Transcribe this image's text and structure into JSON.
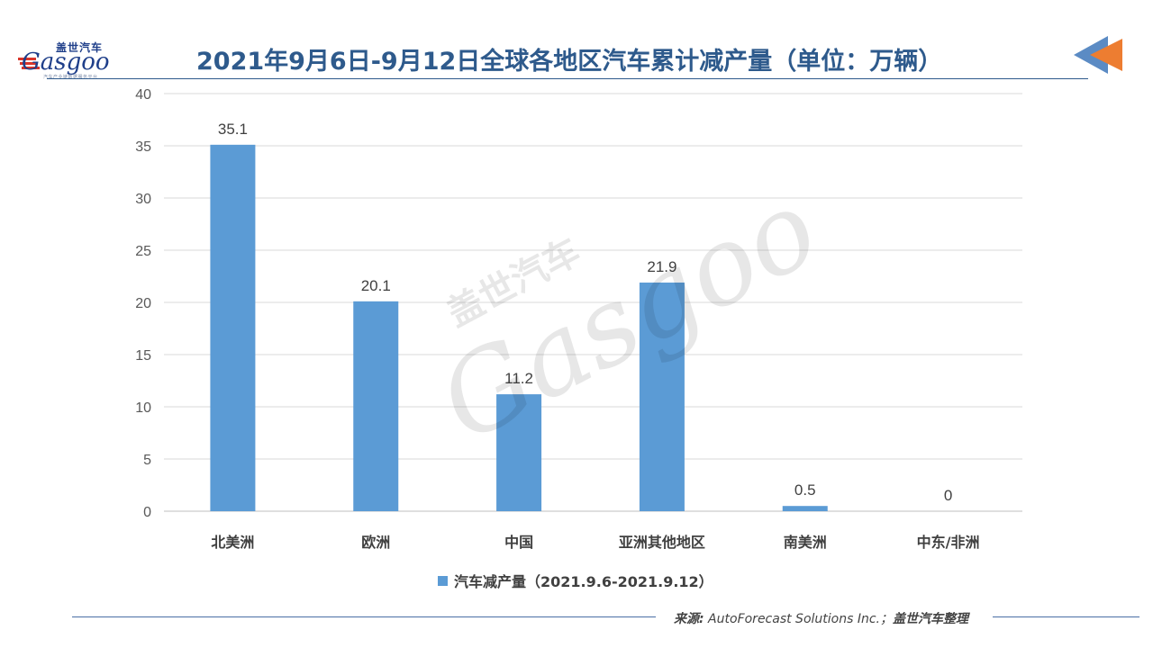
{
  "logo": {
    "cn": "盖世汽车",
    "en": "Gasgoo",
    "sub": "汽车产业链数据服务平台"
  },
  "header": {
    "title": "2021年9月6日-9月12日全球各地区汽车累计减产量（单位：万辆）"
  },
  "source": {
    "label": "来源:",
    "text": " AutoForecast Solutions Inc.；",
    "suffix": "盖世汽车整理"
  },
  "colors": {
    "bar": "#5b9bd5",
    "title": "#2e5a8c",
    "accent": "#ed7d31"
  },
  "chart_data": {
    "type": "bar",
    "title": "2021年9月6日-9月12日全球各地区汽车累计减产量（单位：万辆）",
    "categories": [
      "北美洲",
      "欧洲",
      "中国",
      "亚洲其他地区",
      "南美洲",
      "中东/非洲"
    ],
    "series": [
      {
        "name": "汽车减产量（2021.9.6-2021.9.12）",
        "values": [
          35.1,
          20.1,
          11.2,
          21.9,
          0.5,
          0
        ]
      }
    ],
    "value_labels": [
      "35.1",
      "20.1",
      "11.2",
      "21.9",
      "0.5",
      "0"
    ],
    "yticks": [
      "0",
      "5",
      "10",
      "15",
      "20",
      "25",
      "30",
      "35",
      "40"
    ],
    "ylim": [
      0,
      40
    ],
    "grid": true,
    "legend": "bottom"
  }
}
